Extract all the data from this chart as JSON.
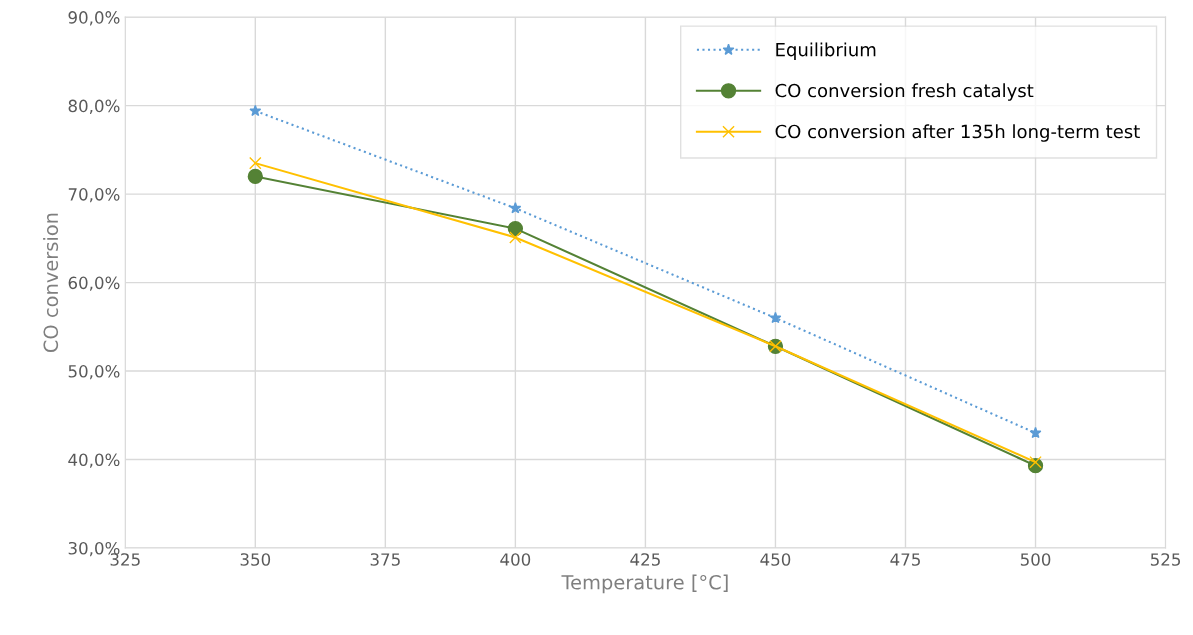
{
  "chart_data": {
    "type": "line",
    "xlabel": "Temperature [°C]",
    "ylabel": "CO conversion",
    "x": [
      350,
      400,
      450,
      500
    ],
    "series": [
      {
        "name": "Equilibrium",
        "color": "#5b9bd5",
        "values": [
          79.4,
          68.4,
          56.0,
          43.0
        ],
        "marker": "star",
        "line_style": "dotted"
      },
      {
        "name": "CO conversion fresh catalyst",
        "color": "#548235",
        "values": [
          72.0,
          66.1,
          52.8,
          39.3
        ],
        "marker": "circle",
        "line_style": "solid"
      },
      {
        "name": "CO conversion after 135h long-term test",
        "color": "#ffc000",
        "values": [
          73.5,
          65.1,
          52.8,
          39.7
        ],
        "marker": "cross",
        "line_style": "solid"
      }
    ],
    "xlim": [
      325,
      525
    ],
    "xticks": [
      325,
      350,
      375,
      400,
      425,
      450,
      475,
      500,
      525
    ],
    "ylim": [
      30,
      90
    ],
    "yticks": [
      {
        "value": 30,
        "label": "30,0%"
      },
      {
        "value": 40,
        "label": "40,0%"
      },
      {
        "value": 50,
        "label": "50,0%"
      },
      {
        "value": 60,
        "label": "60,0%"
      },
      {
        "value": 70,
        "label": "70,0%"
      },
      {
        "value": 80,
        "label": "80,0%"
      },
      {
        "value": 90,
        "label": "90,0%"
      }
    ],
    "grid": true,
    "legend": "top right"
  }
}
